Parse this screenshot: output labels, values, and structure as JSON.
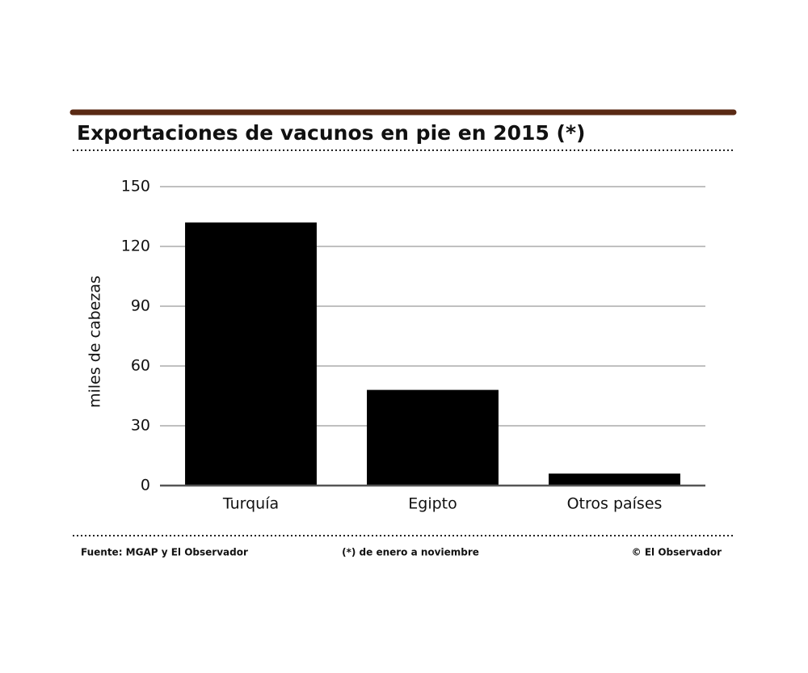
{
  "chart_data": {
    "type": "bar",
    "title": "Exportaciones de vacunos en pie en 2015 (*)",
    "y_label": "miles de cabezas",
    "categories": [
      "Turquía",
      "Egipto",
      "Otros países"
    ],
    "values": [
      132,
      48,
      6
    ],
    "color": "#000000",
    "ylim": [
      0,
      150
    ],
    "yticks": [
      0,
      30,
      60,
      90,
      120,
      150
    ],
    "grid": true,
    "source": "Fuente: MGAP y El Observador",
    "note": "(*) de enero a noviembre",
    "credit": "© El Observador"
  }
}
